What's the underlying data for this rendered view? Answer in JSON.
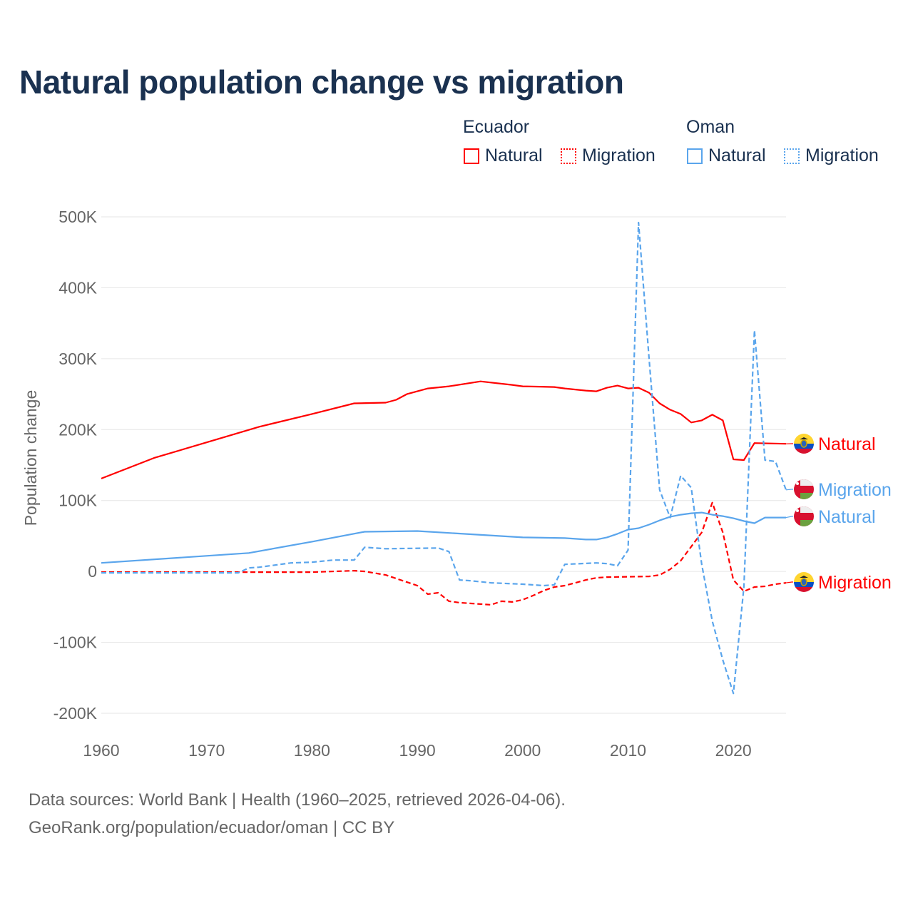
{
  "title": "Natural population change vs migration",
  "legend": {
    "groups": [
      {
        "country": "Ecuador",
        "items": [
          {
            "label": "Natural",
            "style": "solid"
          },
          {
            "label": "Migration",
            "style": "dotted"
          }
        ],
        "color": "#ff0000"
      },
      {
        "country": "Oman",
        "items": [
          {
            "label": "Natural",
            "style": "solid"
          },
          {
            "label": "Migration",
            "style": "dotted"
          }
        ],
        "color": "#5aa5ec"
      }
    ]
  },
  "footer": {
    "line1": "Data sources: World Bank | Health (1960–2025, retrieved 2026-04-06).",
    "line2": "GeoRank.org/population/ecuador/oman | CC BY"
  },
  "chart_data": {
    "type": "line",
    "ylabel": "Population change",
    "xlabel": "",
    "xlim": [
      1960,
      2025
    ],
    "ylim": [
      -200000,
      500000
    ],
    "xticks": [
      "1960",
      "1970",
      "1980",
      "1990",
      "2000",
      "2010",
      "2020"
    ],
    "yticks": [
      {
        "v": 500000,
        "label": "500K"
      },
      {
        "v": 400000,
        "label": "400K"
      },
      {
        "v": 300000,
        "label": "300K"
      },
      {
        "v": 200000,
        "label": "200K"
      },
      {
        "v": 100000,
        "label": "100K"
      },
      {
        "v": 0,
        "label": "0"
      },
      {
        "v": -100000,
        "label": "-100K"
      },
      {
        "v": -200000,
        "label": "-200K"
      }
    ],
    "grid": true,
    "series": [
      {
        "name": "Ecuador Natural",
        "end_label": "Natural",
        "flag": "ecuador",
        "color": "#ff0000",
        "dash": false,
        "points": [
          [
            1960,
            131000
          ],
          [
            1965,
            160000
          ],
          [
            1970,
            182000
          ],
          [
            1975,
            204000
          ],
          [
            1980,
            222000
          ],
          [
            1984,
            237000
          ],
          [
            1987,
            238000
          ],
          [
            1988,
            242000
          ],
          [
            1989,
            250000
          ],
          [
            1991,
            258000
          ],
          [
            1993,
            261000
          ],
          [
            1996,
            268000
          ],
          [
            1999,
            263000
          ],
          [
            2000,
            261000
          ],
          [
            2003,
            260000
          ],
          [
            2004,
            258000
          ],
          [
            2006,
            255000
          ],
          [
            2007,
            254000
          ],
          [
            2008,
            259000
          ],
          [
            2009,
            262000
          ],
          [
            2010,
            258000
          ],
          [
            2011,
            259000
          ],
          [
            2012,
            252000
          ],
          [
            2013,
            237000
          ],
          [
            2014,
            228000
          ],
          [
            2015,
            222000
          ],
          [
            2016,
            210000
          ],
          [
            2017,
            213000
          ],
          [
            2018,
            221000
          ],
          [
            2019,
            213000
          ],
          [
            2020,
            158000
          ],
          [
            2021,
            157000
          ],
          [
            2022,
            181000
          ],
          [
            2025,
            180000
          ]
        ]
      },
      {
        "name": "Ecuador Migration",
        "end_label": "Migration",
        "flag": "ecuador",
        "color": "#ff0000",
        "dash": true,
        "points": [
          [
            1960,
            -1000
          ],
          [
            1980,
            -1000
          ],
          [
            1984,
            1000
          ],
          [
            1985,
            0
          ],
          [
            1987,
            -5000
          ],
          [
            1988,
            -10000
          ],
          [
            1990,
            -20000
          ],
          [
            1991,
            -32000
          ],
          [
            1992,
            -30000
          ],
          [
            1993,
            -42000
          ],
          [
            1994,
            -44000
          ],
          [
            1997,
            -47000
          ],
          [
            1998,
            -42000
          ],
          [
            1999,
            -43000
          ],
          [
            2000,
            -40000
          ],
          [
            2001,
            -34000
          ],
          [
            2002,
            -27000
          ],
          [
            2003,
            -22000
          ],
          [
            2004,
            -20000
          ],
          [
            2005,
            -16000
          ],
          [
            2006,
            -12000
          ],
          [
            2007,
            -9000
          ],
          [
            2008,
            -8000
          ],
          [
            2012,
            -7000
          ],
          [
            2013,
            -5000
          ],
          [
            2014,
            3000
          ],
          [
            2015,
            15000
          ],
          [
            2016,
            35000
          ],
          [
            2017,
            55000
          ],
          [
            2018,
            97000
          ],
          [
            2019,
            55000
          ],
          [
            2020,
            -12000
          ],
          [
            2021,
            -28000
          ],
          [
            2022,
            -22000
          ],
          [
            2023,
            -21000
          ],
          [
            2024,
            -18000
          ],
          [
            2025,
            -16000
          ]
        ]
      },
      {
        "name": "Oman Natural",
        "end_label": "Natural",
        "flag": "oman",
        "color": "#5aa5ec",
        "dash": false,
        "points": [
          [
            1960,
            12000
          ],
          [
            1974,
            26000
          ],
          [
            1980,
            42000
          ],
          [
            1985,
            56000
          ],
          [
            1990,
            57000
          ],
          [
            2000,
            48000
          ],
          [
            2004,
            47000
          ],
          [
            2006,
            45000
          ],
          [
            2007,
            45000
          ],
          [
            2008,
            48000
          ],
          [
            2009,
            53000
          ],
          [
            2010,
            59000
          ],
          [
            2011,
            61000
          ],
          [
            2012,
            66000
          ],
          [
            2013,
            72000
          ],
          [
            2014,
            77000
          ],
          [
            2015,
            80000
          ],
          [
            2016,
            82000
          ],
          [
            2017,
            83000
          ],
          [
            2018,
            80000
          ],
          [
            2019,
            78000
          ],
          [
            2020,
            75000
          ],
          [
            2021,
            71000
          ],
          [
            2022,
            68000
          ],
          [
            2023,
            76000
          ],
          [
            2025,
            76000
          ]
        ]
      },
      {
        "name": "Oman Migration",
        "end_label": "Migration",
        "flag": "oman",
        "color": "#5aa5ec",
        "dash": true,
        "points": [
          [
            1960,
            -2000
          ],
          [
            1973,
            -2000
          ],
          [
            1974,
            5000
          ],
          [
            1975,
            6000
          ],
          [
            1977,
            10000
          ],
          [
            1978,
            12000
          ],
          [
            1980,
            13000
          ],
          [
            1982,
            16000
          ],
          [
            1984,
            16000
          ],
          [
            1985,
            34000
          ],
          [
            1987,
            32000
          ],
          [
            1992,
            33000
          ],
          [
            1993,
            28000
          ],
          [
            1994,
            -12000
          ],
          [
            1995,
            -13000
          ],
          [
            1997,
            -16000
          ],
          [
            2000,
            -18000
          ],
          [
            2002,
            -20000
          ],
          [
            2003,
            -19000
          ],
          [
            2004,
            10000
          ],
          [
            2007,
            12000
          ],
          [
            2008,
            11000
          ],
          [
            2009,
            8000
          ],
          [
            2010,
            30000
          ],
          [
            2011,
            492000
          ],
          [
            2012,
            300000
          ],
          [
            2013,
            115000
          ],
          [
            2014,
            76000
          ],
          [
            2015,
            135000
          ],
          [
            2016,
            118000
          ],
          [
            2017,
            10000
          ],
          [
            2018,
            -70000
          ],
          [
            2019,
            -125000
          ],
          [
            2020,
            -172000
          ],
          [
            2021,
            -22000
          ],
          [
            2022,
            340000
          ],
          [
            2023,
            157000
          ],
          [
            2024,
            155000
          ],
          [
            2025,
            115000
          ]
        ]
      }
    ]
  }
}
